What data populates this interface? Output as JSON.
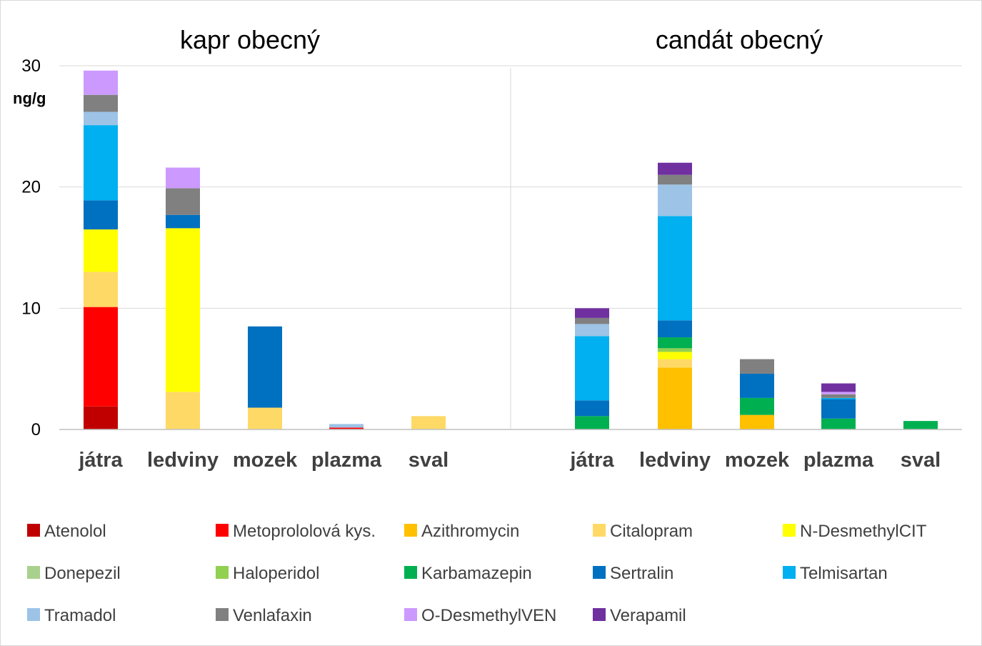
{
  "chart_data": {
    "type": "bar",
    "stacked": true,
    "y_unit": "ng/g",
    "ylim": [
      0,
      30
    ],
    "yticks": [
      0,
      10,
      20,
      30
    ],
    "grid": true,
    "legend_position": "bottom",
    "categories": [
      "játra",
      "ledviny",
      "mozek",
      "plazma",
      "sval"
    ],
    "series": [
      {
        "name": "Atenolol",
        "color": "#C00000"
      },
      {
        "name": "Metoprololová kys.",
        "color": "#FF0000"
      },
      {
        "name": "Azithromycin",
        "color": "#FFC000"
      },
      {
        "name": "Citalopram",
        "color": "#FFD966"
      },
      {
        "name": "N-DesmethylCIT",
        "color": "#FFFF00"
      },
      {
        "name": "Donepezil",
        "color": "#A9D18E"
      },
      {
        "name": "Haloperidol",
        "color": "#92D050"
      },
      {
        "name": "Karbamazepin",
        "color": "#00B050"
      },
      {
        "name": "Sertralin",
        "color": "#0070C0"
      },
      {
        "name": "Telmisartan",
        "color": "#00B0F0"
      },
      {
        "name": "Tramadol",
        "color": "#9DC3E6"
      },
      {
        "name": "Venlafaxin",
        "color": "#808080"
      },
      {
        "name": "O-DesmethylVEN",
        "color": "#CC99FF"
      },
      {
        "name": "Verapamil",
        "color": "#7030A0"
      }
    ],
    "panels": [
      {
        "title": "kapr obecný",
        "values": {
          "játra": [
            1.9,
            8.2,
            0,
            2.9,
            3.5,
            0,
            0,
            0,
            2.4,
            6.2,
            1.1,
            1.4,
            2.0,
            0
          ],
          "ledviny": [
            0,
            0,
            0,
            3.1,
            13.5,
            0,
            0,
            0,
            1.1,
            0,
            0,
            2.2,
            1.7,
            0
          ],
          "mozek": [
            0,
            0,
            0,
            1.8,
            0,
            0,
            0,
            0,
            6.7,
            0,
            0,
            0,
            0,
            0
          ],
          "plazma": [
            0.05,
            0.1,
            0,
            0,
            0,
            0,
            0,
            0,
            0,
            0,
            0.3,
            0,
            0,
            0
          ],
          "sval": [
            0,
            0,
            0,
            1.1,
            0,
            0,
            0,
            0,
            0,
            0,
            0,
            0,
            0,
            0
          ]
        }
      },
      {
        "title": "candát obecný",
        "values": {
          "játra": [
            0,
            0,
            0,
            0,
            0,
            0,
            0,
            1.1,
            1.3,
            5.3,
            1.0,
            0.5,
            0,
            0.8
          ],
          "ledviny": [
            0,
            0,
            5.1,
            0.7,
            0.6,
            0,
            0.3,
            0.9,
            1.4,
            8.6,
            2.6,
            0.8,
            0,
            1.0
          ],
          "mozek": [
            0,
            0,
            1.2,
            0,
            0,
            0,
            0,
            1.4,
            2.0,
            0,
            0,
            1.2,
            0,
            0
          ],
          "plazma": [
            0,
            0,
            0,
            0,
            0,
            0,
            0,
            0.9,
            1.6,
            0.1,
            0,
            0.3,
            0.2,
            0.7
          ],
          "sval": [
            0,
            0,
            0,
            0,
            0,
            0,
            0,
            0.7,
            0,
            0,
            0,
            0,
            0,
            0
          ]
        }
      }
    ]
  }
}
